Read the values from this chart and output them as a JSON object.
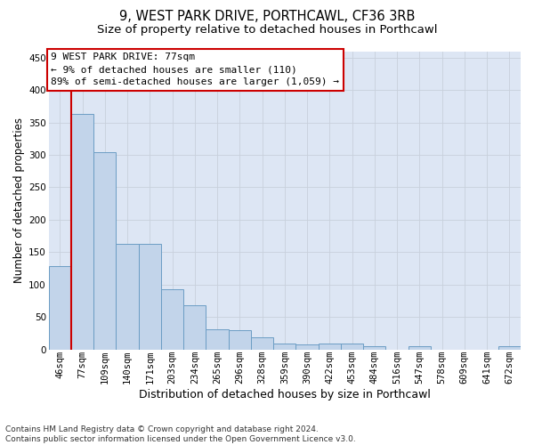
{
  "title_line1": "9, WEST PARK DRIVE, PORTHCAWL, CF36 3RB",
  "title_line2": "Size of property relative to detached houses in Porthcawl",
  "xlabel": "Distribution of detached houses by size in Porthcawl",
  "ylabel": "Number of detached properties",
  "categories": [
    "46sqm",
    "77sqm",
    "109sqm",
    "140sqm",
    "171sqm",
    "203sqm",
    "234sqm",
    "265sqm",
    "296sqm",
    "328sqm",
    "359sqm",
    "390sqm",
    "422sqm",
    "453sqm",
    "484sqm",
    "516sqm",
    "547sqm",
    "578sqm",
    "609sqm",
    "641sqm",
    "672sqm"
  ],
  "values": [
    128,
    363,
    304,
    163,
    163,
    93,
    68,
    31,
    30,
    19,
    9,
    7,
    9,
    9,
    5,
    0,
    5,
    0,
    0,
    0,
    5
  ],
  "bar_color": "#c2d4ea",
  "bar_edge_color": "#6b9dc4",
  "highlight_bar_index": 1,
  "highlight_color": "#cc0000",
  "annotation_line1": "9 WEST PARK DRIVE: 77sqm",
  "annotation_line2": "← 9% of detached houses are smaller (110)",
  "annotation_line3": "89% of semi-detached houses are larger (1,059) →",
  "annotation_box_facecolor": "#ffffff",
  "annotation_box_edgecolor": "#cc0000",
  "ylim": [
    0,
    460
  ],
  "yticks": [
    0,
    50,
    100,
    150,
    200,
    250,
    300,
    350,
    400,
    450
  ],
  "grid_color": "#c8d0dc",
  "plot_bg_color": "#dde6f4",
  "footer_line1": "Contains HM Land Registry data © Crown copyright and database right 2024.",
  "footer_line2": "Contains public sector information licensed under the Open Government Licence v3.0.",
  "title1_fontsize": 10.5,
  "title2_fontsize": 9.5,
  "ylabel_fontsize": 8.5,
  "xlabel_fontsize": 9,
  "tick_fontsize": 7.5,
  "annotation_fontsize": 8,
  "footer_fontsize": 6.5
}
